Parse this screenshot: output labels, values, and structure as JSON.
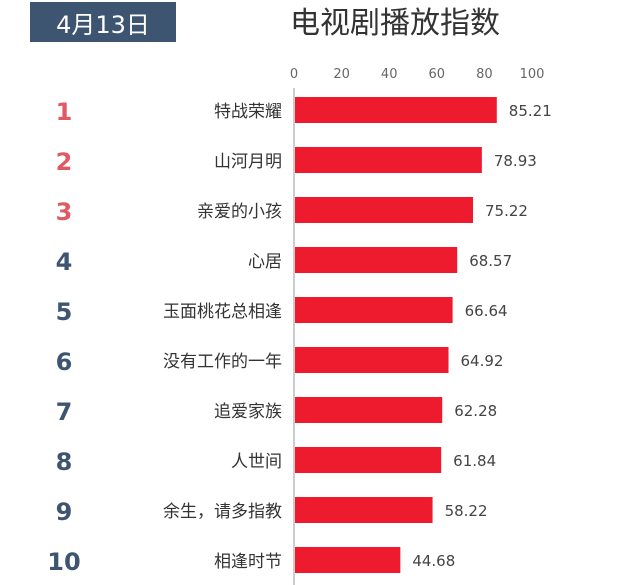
{
  "header": {
    "date": "4月13日"
  },
  "chart_data": {
    "type": "bar",
    "title": "电视剧播放指数",
    "orientation": "horizontal",
    "xlim": [
      0,
      100
    ],
    "ticks": [
      0,
      20,
      40,
      60,
      80,
      100
    ],
    "ranks": [
      "1",
      "2",
      "3",
      "4",
      "5",
      "6",
      "7",
      "8",
      "9",
      "10"
    ],
    "categories": [
      "特战荣耀",
      "山河月明",
      "亲爱的小孩",
      "心居",
      "玉面桃花总相逢",
      "没有工作的一年",
      "追爱家族",
      "人世间",
      "余生，请多指教",
      "相逢时节"
    ],
    "values": [
      85.21,
      78.93,
      75.22,
      68.57,
      66.64,
      64.92,
      62.28,
      61.84,
      58.22,
      44.68
    ],
    "value_labels": [
      "85.21",
      "78.93",
      "75.22",
      "68.57",
      "66.64",
      "64.92",
      "62.28",
      "61.84",
      "58.22",
      "44.68"
    ],
    "colors": {
      "bar": "#ee1b2e",
      "rank_top": "#e05a64",
      "rank_other": "#3d5570"
    }
  }
}
